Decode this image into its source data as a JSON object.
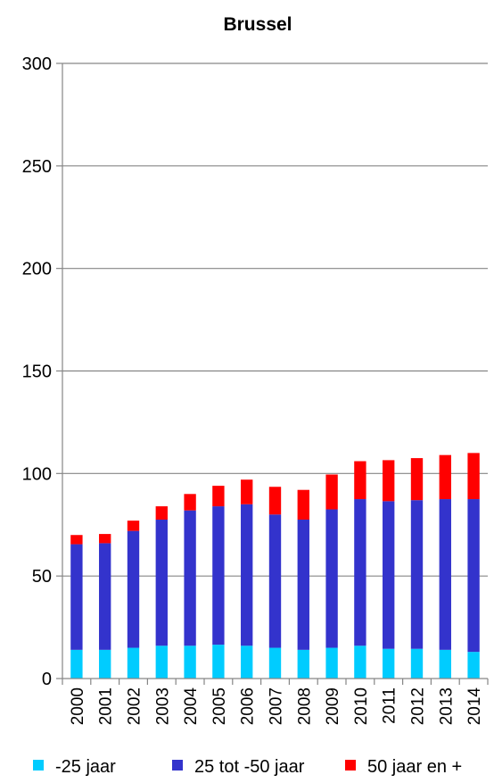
{
  "chart_data": {
    "type": "bar",
    "stacked": true,
    "title": "Brussel",
    "xlabel": "",
    "ylabel": "",
    "ylim": [
      0,
      300
    ],
    "yticks": [
      "0",
      "50",
      "100",
      "150",
      "200",
      "250",
      "300"
    ],
    "grid": true,
    "legend_position": "bottom",
    "categories": [
      "2000",
      "2001",
      "2002",
      "2003",
      "2004",
      "2005",
      "2006",
      "2007",
      "2008",
      "2009",
      "2010",
      "2011",
      "2012",
      "2013",
      "2014"
    ],
    "series": [
      {
        "name": "-25 jaar",
        "color": "#00CCFF",
        "values": [
          14,
          14,
          15,
          16,
          16,
          16.5,
          16,
          15,
          14,
          15,
          16,
          14.5,
          14.5,
          14,
          13
        ]
      },
      {
        "name": "25 tot -50 jaar",
        "color": "#3333CC",
        "values": [
          51.5,
          52,
          57,
          61.5,
          66,
          67.5,
          69,
          65,
          63.5,
          67.5,
          71.5,
          72,
          72.5,
          73.5,
          74.5
        ]
      },
      {
        "name": "50 jaar en +",
        "color": "#FF0000",
        "values": [
          4.5,
          4.5,
          5,
          6.5,
          8,
          10,
          12,
          13.5,
          14.5,
          17,
          18.5,
          20,
          20.5,
          21.5,
          22.5
        ]
      }
    ]
  }
}
